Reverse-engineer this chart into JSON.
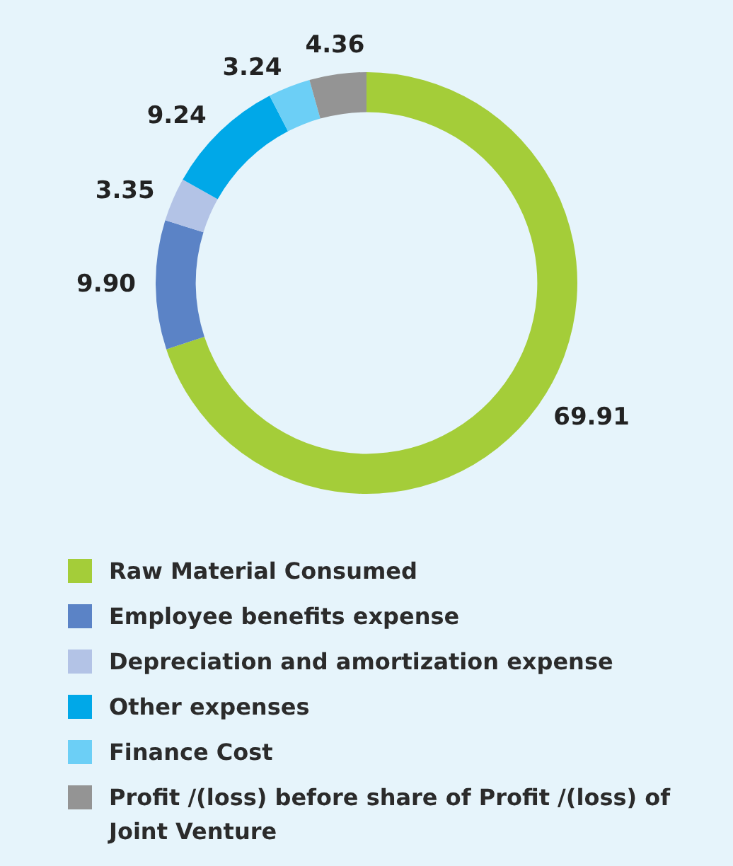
{
  "chart_data": {
    "type": "donut",
    "categories": [
      "Raw Material Consumed",
      "Employee benefits expense",
      "Depreciation and amortization expense",
      "Other expenses",
      "Finance Cost",
      "Profit /(loss) before share of Profit /(loss) of Joint Venture"
    ],
    "values": [
      69.91,
      9.9,
      3.35,
      9.24,
      3.24,
      4.36
    ],
    "colors": [
      "#a4cd39",
      "#5b83c6",
      "#b3c3e6",
      "#00a8e8",
      "#6ccff6",
      "#949494"
    ],
    "value_labels": [
      "69.91",
      "9.90",
      "3.35",
      "9.24",
      "3.24",
      "4.36"
    ],
    "legend": "bottom"
  }
}
